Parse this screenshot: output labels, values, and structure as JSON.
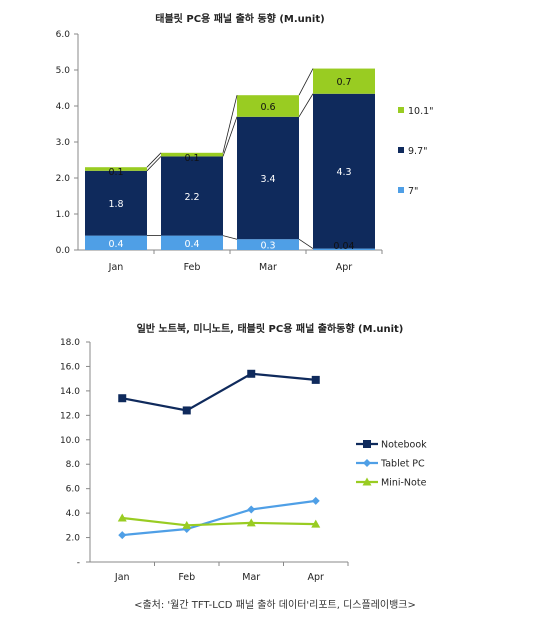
{
  "chart_data": [
    {
      "type": "bar",
      "stacked": true,
      "title": "태블릿 PC용 패널 출하 동향 (M.unit)",
      "categories": [
        "Jan",
        "Feb",
        "Mar",
        "Apr"
      ],
      "ylim": [
        0,
        6
      ],
      "yticks": [
        "0.0",
        "1.0",
        "2.0",
        "3.0",
        "4.0",
        "5.0",
        "6.0"
      ],
      "grid": false,
      "legend_position": "right",
      "series": [
        {
          "name": "7\"",
          "values": [
            0.4,
            0.4,
            0.3,
            0.04
          ],
          "labels": [
            "0.4",
            "0.4",
            "0.3",
            "0.04"
          ],
          "color": "#4f9fe6",
          "label_color": "#ffffff"
        },
        {
          "name": "9.7\"",
          "values": [
            1.8,
            2.2,
            3.4,
            4.3
          ],
          "labels": [
            "1.8",
            "2.2",
            "3.4",
            "4.3"
          ],
          "color": "#0f2a5c",
          "label_color": "#ffffff"
        },
        {
          "name": "10.1\"",
          "values": [
            0.1,
            0.1,
            0.6,
            0.7
          ],
          "labels": [
            "0.1",
            "0.1",
            "0.6",
            "0.7"
          ],
          "color": "#99cc22",
          "label_color": "#111111"
        }
      ],
      "legend_order": [
        2,
        1,
        0
      ]
    },
    {
      "type": "line",
      "title": "일반 노트북, 미니노트, 태블릿 PC용 패널 출하동향 (M.unit)",
      "categories": [
        "Jan",
        "Feb",
        "Mar",
        "Apr"
      ],
      "ylim": [
        0,
        18
      ],
      "yticks": [
        "-",
        "2.0",
        "4.0",
        "6.0",
        "8.0",
        "10.0",
        "12.0",
        "14.0",
        "16.0",
        "18.0"
      ],
      "grid": false,
      "legend_position": "right",
      "series": [
        {
          "name": "Notebook",
          "values": [
            13.4,
            12.4,
            15.4,
            14.9
          ],
          "color": "#0f2a5c",
          "marker": "square"
        },
        {
          "name": "Tablet PC",
          "values": [
            2.2,
            2.7,
            4.3,
            5.0
          ],
          "color": "#4f9fe6",
          "marker": "diamond"
        },
        {
          "name": "Mini-Note",
          "values": [
            3.6,
            3.0,
            3.2,
            3.1
          ],
          "color": "#99cc22",
          "marker": "triangle"
        }
      ]
    }
  ],
  "source": "<출처: '월간 TFT-LCD 패널 출하 데이터'리포트, 디스플레이뱅크>"
}
